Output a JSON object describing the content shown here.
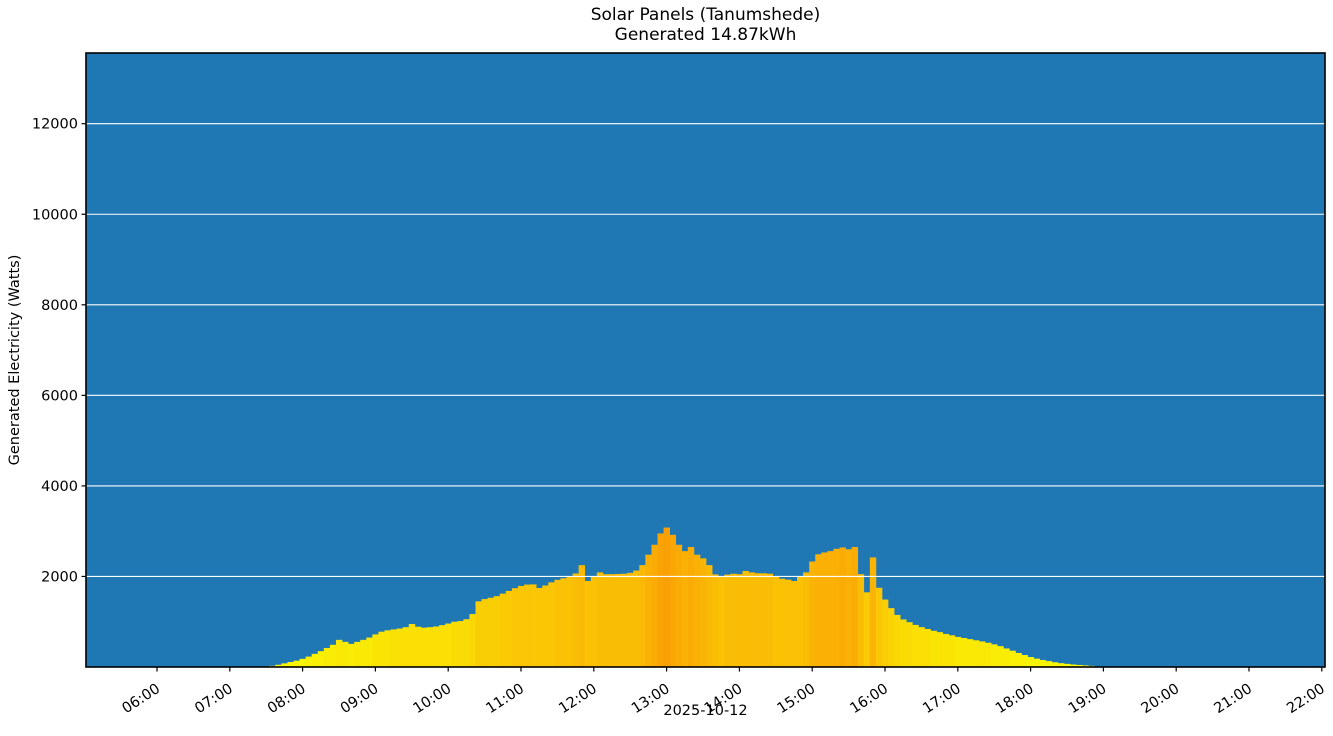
{
  "chart_data": {
    "type": "area",
    "title": "Solar Panels (Tanumshede)",
    "subtitle": "Generated 14.87kWh",
    "ylabel": "Generated Electricity (Watts)",
    "xlabel": "2025-10-12",
    "generated_total_kwh": 14.87,
    "site_name": "Tanumshede",
    "legend": "none",
    "grid": "horizontal-only",
    "ylim": [
      0,
      13565
    ],
    "xlim_hours": [
      5.03,
      22.04
    ],
    "y_ticks": [
      2000,
      4000,
      6000,
      8000,
      10000,
      12000
    ],
    "x_ticks": [
      "06:00",
      "07:00",
      "08:00",
      "09:00",
      "10:00",
      "11:00",
      "12:00",
      "13:00",
      "14:00",
      "15:00",
      "16:00",
      "17:00",
      "18:00",
      "19:00",
      "20:00",
      "21:00",
      "22:00"
    ],
    "colors": {
      "plot_background": "#1f77b4",
      "gridline": "#ffffff",
      "axis": "#000000",
      "colormap_low": "#f8f500",
      "colormap_mid": "#fcc203",
      "colormap_high": "#f9a404",
      "colormap_max_value": 3100,
      "quantize_step": 150
    },
    "series": [
      {
        "name": "Generated Electricity",
        "unit": "W",
        "interval_minutes": 5,
        "points": [
          [
            "07:30",
            0
          ],
          [
            "07:35",
            25
          ],
          [
            "07:40",
            50
          ],
          [
            "07:45",
            80
          ],
          [
            "07:50",
            110
          ],
          [
            "07:55",
            140
          ],
          [
            "08:00",
            180
          ],
          [
            "08:05",
            230
          ],
          [
            "08:10",
            290
          ],
          [
            "08:15",
            350
          ],
          [
            "08:20",
            420
          ],
          [
            "08:25",
            490
          ],
          [
            "08:30",
            600
          ],
          [
            "08:35",
            555
          ],
          [
            "08:40",
            510
          ],
          [
            "08:45",
            555
          ],
          [
            "08:50",
            600
          ],
          [
            "08:55",
            650
          ],
          [
            "09:00",
            720
          ],
          [
            "09:05",
            780
          ],
          [
            "09:10",
            810
          ],
          [
            "09:15",
            830
          ],
          [
            "09:20",
            850
          ],
          [
            "09:25",
            880
          ],
          [
            "09:30",
            950
          ],
          [
            "09:35",
            890
          ],
          [
            "09:40",
            870
          ],
          [
            "09:45",
            880
          ],
          [
            "09:50",
            895
          ],
          [
            "09:55",
            925
          ],
          [
            "10:00",
            960
          ],
          [
            "10:05",
            1000
          ],
          [
            "10:10",
            1015
          ],
          [
            "10:15",
            1055
          ],
          [
            "10:20",
            1170
          ],
          [
            "10:25",
            1450
          ],
          [
            "10:30",
            1500
          ],
          [
            "10:35",
            1530
          ],
          [
            "10:40",
            1565
          ],
          [
            "10:45",
            1620
          ],
          [
            "10:50",
            1680
          ],
          [
            "10:55",
            1740
          ],
          [
            "11:00",
            1790
          ],
          [
            "11:05",
            1820
          ],
          [
            "11:10",
            1825
          ],
          [
            "11:15",
            1745
          ],
          [
            "11:20",
            1800
          ],
          [
            "11:25",
            1870
          ],
          [
            "11:30",
            1925
          ],
          [
            "11:35",
            1960
          ],
          [
            "11:40",
            1995
          ],
          [
            "11:45",
            2065
          ],
          [
            "11:50",
            2250
          ],
          [
            "11:55",
            1900
          ],
          [
            "12:00",
            2010
          ],
          [
            "12:05",
            2090
          ],
          [
            "12:10",
            2050
          ],
          [
            "12:15",
            2050
          ],
          [
            "12:20",
            2055
          ],
          [
            "12:25",
            2060
          ],
          [
            "12:30",
            2080
          ],
          [
            "12:35",
            2130
          ],
          [
            "12:40",
            2250
          ],
          [
            "12:45",
            2480
          ],
          [
            "12:50",
            2700
          ],
          [
            "12:55",
            2950
          ],
          [
            "13:00",
            3080
          ],
          [
            "13:05",
            2920
          ],
          [
            "13:10",
            2700
          ],
          [
            "13:15",
            2560
          ],
          [
            "13:20",
            2650
          ],
          [
            "13:25",
            2480
          ],
          [
            "13:30",
            2400
          ],
          [
            "13:35",
            2250
          ],
          [
            "13:40",
            2045
          ],
          [
            "13:45",
            2010
          ],
          [
            "13:50",
            2040
          ],
          [
            "13:55",
            2060
          ],
          [
            "14:00",
            2050
          ],
          [
            "14:05",
            2120
          ],
          [
            "14:10",
            2090
          ],
          [
            "14:15",
            2070
          ],
          [
            "14:20",
            2070
          ],
          [
            "14:25",
            2060
          ],
          [
            "14:30",
            1990
          ],
          [
            "14:35",
            1950
          ],
          [
            "14:40",
            1930
          ],
          [
            "14:45",
            1900
          ],
          [
            "14:50",
            2010
          ],
          [
            "14:55",
            2090
          ],
          [
            "15:00",
            2330
          ],
          [
            "15:05",
            2490
          ],
          [
            "15:10",
            2530
          ],
          [
            "15:15",
            2560
          ],
          [
            "15:20",
            2610
          ],
          [
            "15:25",
            2640
          ],
          [
            "15:30",
            2600
          ],
          [
            "15:35",
            2650
          ],
          [
            "15:40",
            2050
          ],
          [
            "15:45",
            1650
          ],
          [
            "15:50",
            2420
          ],
          [
            "15:55",
            1750
          ],
          [
            "16:00",
            1490
          ],
          [
            "16:05",
            1300
          ],
          [
            "16:10",
            1150
          ],
          [
            "16:15",
            1050
          ],
          [
            "16:20",
            990
          ],
          [
            "16:25",
            930
          ],
          [
            "16:30",
            880
          ],
          [
            "16:35",
            840
          ],
          [
            "16:40",
            800
          ],
          [
            "16:45",
            770
          ],
          [
            "16:50",
            730
          ],
          [
            "16:55",
            700
          ],
          [
            "17:00",
            665
          ],
          [
            "17:05",
            640
          ],
          [
            "17:10",
            615
          ],
          [
            "17:15",
            590
          ],
          [
            "17:20",
            565
          ],
          [
            "17:25",
            535
          ],
          [
            "17:30",
            500
          ],
          [
            "17:35",
            460
          ],
          [
            "17:40",
            410
          ],
          [
            "17:45",
            360
          ],
          [
            "17:50",
            310
          ],
          [
            "17:55",
            265
          ],
          [
            "18:00",
            220
          ],
          [
            "18:05",
            185
          ],
          [
            "18:10",
            155
          ],
          [
            "18:15",
            130
          ],
          [
            "18:20",
            105
          ],
          [
            "18:25",
            85
          ],
          [
            "18:30",
            70
          ],
          [
            "18:35",
            55
          ],
          [
            "18:40",
            45
          ],
          [
            "18:45",
            35
          ],
          [
            "18:50",
            25
          ],
          [
            "18:55",
            10
          ]
        ]
      }
    ]
  }
}
